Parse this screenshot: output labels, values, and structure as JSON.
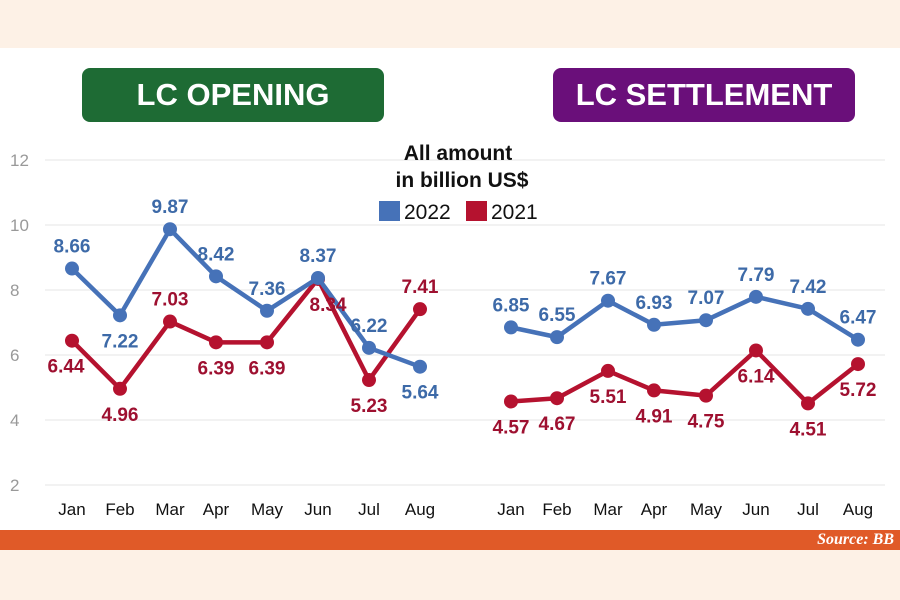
{
  "source": "Source: BB",
  "legend": {
    "note_line1": "All amount",
    "note_line2": "in billion US$",
    "items": [
      {
        "label": "2022",
        "color": "#4672b8"
      },
      {
        "label": "2021",
        "color": "#b5122f"
      }
    ]
  },
  "chart_data": [
    {
      "type": "line",
      "title": "LC OPENING",
      "categories": [
        "Jan",
        "Feb",
        "Mar",
        "Apr",
        "May",
        "Jun",
        "Jul",
        "Aug"
      ],
      "ylim": [
        2,
        12
      ],
      "yticks": [
        2,
        4,
        6,
        8,
        10,
        12
      ],
      "grid": true,
      "series": [
        {
          "name": "2022",
          "color": "#4672b8",
          "values": [
            8.66,
            7.22,
            9.87,
            8.42,
            7.36,
            8.37,
            6.22,
            5.64
          ]
        },
        {
          "name": "2021",
          "color": "#b5122f",
          "values": [
            6.44,
            4.96,
            7.03,
            6.39,
            6.39,
            8.34,
            5.23,
            7.41
          ]
        }
      ]
    },
    {
      "type": "line",
      "title": "LC SETTLEMENT",
      "categories": [
        "Jan",
        "Feb",
        "Mar",
        "Apr",
        "May",
        "Jun",
        "Jul",
        "Aug"
      ],
      "ylim": [
        2,
        12
      ],
      "grid": true,
      "series": [
        {
          "name": "2022",
          "color": "#4672b8",
          "values": [
            6.85,
            6.55,
            7.67,
            6.93,
            7.07,
            7.79,
            7.42,
            6.47
          ]
        },
        {
          "name": "2021",
          "color": "#b5122f",
          "values": [
            4.57,
            4.67,
            5.51,
            4.91,
            4.75,
            6.14,
            4.51,
            5.72
          ]
        }
      ]
    }
  ]
}
